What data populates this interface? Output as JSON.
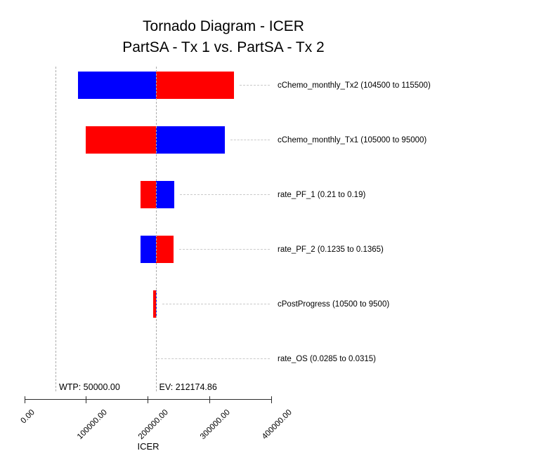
{
  "title": {
    "line1": "Tornado Diagram - ICER",
    "line2": "PartSA - Tx 1 vs. PartSA - Tx 2"
  },
  "chart_data": {
    "type": "bar",
    "subtype": "tornado",
    "title": "Tornado Diagram - ICER",
    "subtitle": "PartSA - Tx 1 vs. PartSA - Tx 2",
    "xlabel": "ICER",
    "x_axis": {
      "min": 0,
      "max": 400000,
      "tick_values": [
        0,
        100000,
        200000,
        300000,
        400000
      ],
      "tick_labels": [
        "0.00",
        "100000.00",
        "200000.00",
        "300000.00",
        "400000.00"
      ]
    },
    "expected_value": 212174.86,
    "reference_lines": [
      {
        "name": "wtp",
        "label": "WTP: 50000.00",
        "value": 50000
      },
      {
        "name": "ev",
        "label": "EV: 212174.86",
        "value": 212174.86
      }
    ],
    "colors": {
      "blue": "#0000FF",
      "red": "#FF0000",
      "leader_line": "#C9C9C9",
      "reference_line": "#ACACAC",
      "axis": "#2B2B2B"
    },
    "bars": [
      {
        "param": "cChemo_monthly_Tx2",
        "label": "cChemo_monthly_Tx2 (104500 to 115500)",
        "param_range": [
          104500,
          115500
        ],
        "icer_min": 86100,
        "icer_max": 338600,
        "left_color": "blue",
        "right_color": "red"
      },
      {
        "param": "cChemo_monthly_Tx1",
        "label": "cChemo_monthly_Tx1 (105000 to 95000)",
        "param_range": [
          105000,
          95000
        ],
        "icer_min": 98600,
        "icer_max": 324100,
        "left_color": "red",
        "right_color": "blue"
      },
      {
        "param": "rate_PF_1",
        "label": "rate_PF_1 (0.21 to 0.19)",
        "param_range": [
          0.21,
          0.19
        ],
        "icer_min": 188000,
        "icer_max": 242600,
        "left_color": "red",
        "right_color": "blue"
      },
      {
        "param": "rate_PF_2",
        "label": "rate_PF_2 (0.1235 to 0.1365)",
        "param_range": [
          0.1235,
          0.1365
        ],
        "icer_min": 187300,
        "icer_max": 240800,
        "left_color": "blue",
        "right_color": "red"
      },
      {
        "param": "cPostProgress",
        "label": "cPostProgress (10500 to 9500)",
        "param_range": [
          10500,
          9500
        ],
        "icer_min": 207800,
        "icer_max": 213800,
        "left_color": "red",
        "right_color": "blue"
      },
      {
        "param": "rate_OS",
        "label": "rate_OS (0.0285 to 0.0315)",
        "param_range": [
          0.0285,
          0.0315
        ],
        "icer_min": 212174.86,
        "icer_max": 212174.86,
        "left_color": null,
        "right_color": null
      }
    ]
  }
}
